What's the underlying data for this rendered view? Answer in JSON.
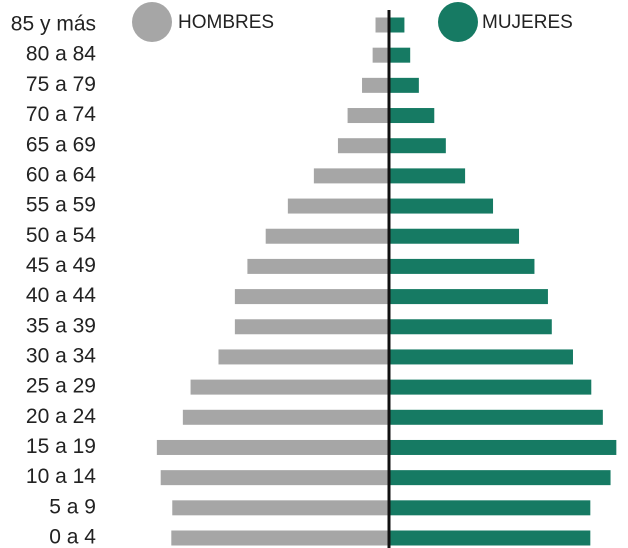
{
  "chart_data": {
    "type": "pyramid",
    "categories": [
      "85 y más",
      "80 a 84",
      "75 a 79",
      "70 a 74",
      "65 a 69",
      "60 a 64",
      "55 a 59",
      "50 a 54",
      "45 a 49",
      "40 a 44",
      "35 a 39",
      "30 a 34",
      "25 a 29",
      "20 a 24",
      "15 a 19",
      "10 a 14",
      "5 a 9",
      "0 a 4"
    ],
    "series": [
      {
        "name": "HOMBRES",
        "color": "#a6a6a6",
        "values": [
          14,
          17,
          28,
          43,
          53,
          78,
          105,
          128,
          147,
          160,
          160,
          177,
          206,
          214,
          241,
          237,
          225,
          226
        ]
      },
      {
        "name": "MUJERES",
        "color": "#167a63",
        "values": [
          16,
          22,
          31,
          47,
          59,
          79,
          108,
          135,
          151,
          165,
          169,
          191,
          210,
          222,
          236,
          230,
          209,
          209
        ]
      }
    ],
    "xlim": [
      0,
      245
    ]
  }
}
